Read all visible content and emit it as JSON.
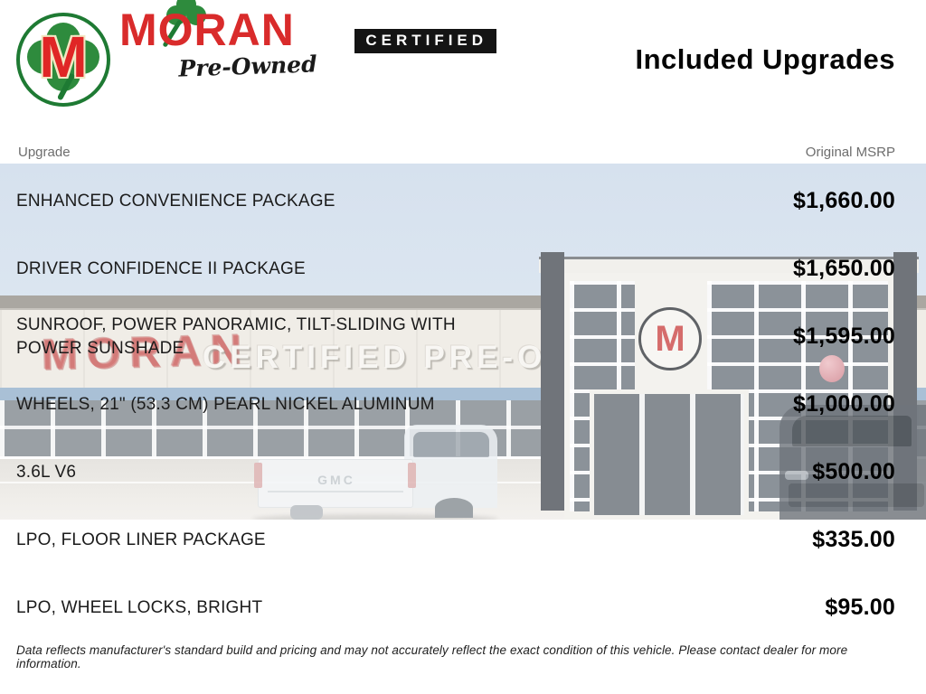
{
  "header": {
    "title": "Included Upgrades",
    "upgrade_label": "Upgrade",
    "msrp_label": "Original MSRP"
  },
  "logo": {
    "monogram": "M",
    "brand": "MORAN",
    "certified": "CERTIFIED",
    "preowned": "Pre-Owned"
  },
  "photo": {
    "watermark_brand": "MORAN",
    "watermark_tagline": "CERTIFIED PRE-OWNED",
    "tower_monogram": "M",
    "truck_badge": "GMC"
  },
  "table": {
    "rows": [
      {
        "name": "ENHANCED CONVENIENCE PACKAGE",
        "msrp": "$1,660.00"
      },
      {
        "name": "DRIVER CONFIDENCE II PACKAGE",
        "msrp": "$1,650.00"
      },
      {
        "name": "SUNROOF, POWER PANORAMIC, TILT-SLIDING WITH POWER SUNSHADE",
        "msrp": "$1,595.00"
      },
      {
        "name": "WHEELS, 21\" (53.3 CM) PEARL NICKEL ALUMINUM",
        "msrp": "$1,000.00"
      },
      {
        "name": "3.6L V6",
        "msrp": "$500.00"
      },
      {
        "name": "LPO, FLOOR LINER PACKAGE",
        "msrp": "$335.00"
      },
      {
        "name": "LPO, WHEEL LOCKS, BRIGHT",
        "msrp": "$95.00"
      }
    ]
  },
  "footer": {
    "disclaimer": "Data reflects manufacturer's standard build and pricing and may not accurately reflect the exact condition of this vehicle. Please contact dealer for more information."
  },
  "colors": {
    "brand_red": "#d92b2b",
    "brand_green": "#1e7a33",
    "certified_bar": "#141414",
    "price_text": "#000000",
    "header_label": "#6d6d6d",
    "sky": "#dbe4ef"
  }
}
